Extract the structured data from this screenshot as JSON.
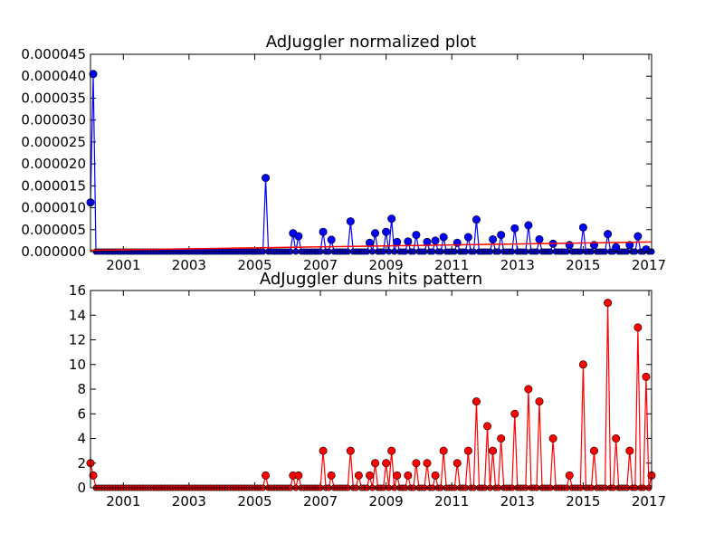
{
  "chart_data": [
    {
      "type": "line",
      "title": "AdJuggler normalized plot",
      "xlabel": "",
      "ylabel": "",
      "x_tick_labels": [
        "2001",
        "2003",
        "2005",
        "2007",
        "2009",
        "2011",
        "2013",
        "2015",
        "2017"
      ],
      "y_tick_labels": [
        "0.000000",
        "0.000005",
        "0.000010",
        "0.000015",
        "0.000020",
        "0.000025",
        "0.000030",
        "0.000035",
        "0.000040",
        "0.000045"
      ],
      "xlim": [
        "2000-01",
        "2017-02"
      ],
      "ylim": [
        0,
        4.5e-05
      ],
      "grid": false,
      "series": [
        {
          "color": "#0000ff",
          "marker": "circle",
          "x": [
            "2000-01",
            "2000-02",
            "2005-05",
            "2006-03",
            "2006-05",
            "2007-02",
            "2007-05",
            "2007-12",
            "2008-07",
            "2008-09",
            "2009-01",
            "2009-03",
            "2009-05",
            "2009-09",
            "2009-12",
            "2010-04",
            "2010-07",
            "2010-10",
            "2011-03",
            "2011-07",
            "2011-10",
            "2012-04",
            "2012-07",
            "2012-12",
            "2013-05",
            "2013-09",
            "2014-02",
            "2014-08",
            "2015-01",
            "2015-05",
            "2015-10",
            "2016-01",
            "2016-06",
            "2016-09",
            "2016-12"
          ],
          "values": [
            1.12e-05,
            4.05e-05,
            1.68e-05,
            4.2e-06,
            3.5e-06,
            4.5e-06,
            2.7e-06,
            6.9e-06,
            2e-06,
            4.2e-06,
            4.5e-06,
            7.5e-06,
            2.2e-06,
            2.3e-06,
            3.8e-06,
            2.2e-06,
            2.5e-06,
            3.3e-06,
            2e-06,
            3.3e-06,
            7.3e-06,
            2.8e-06,
            3.8e-06,
            5.3e-06,
            6e-06,
            2.8e-06,
            1.8e-06,
            1.5e-06,
            5.5e-06,
            1.5e-06,
            4e-06,
            1e-06,
            1.5e-06,
            3.5e-06,
            5e-07
          ]
        },
        {
          "color": "#ff0000",
          "marker": "none",
          "x": [
            "2000-01",
            "2017-02"
          ],
          "values": [
            3e-07,
            2.2e-06
          ]
        }
      ]
    },
    {
      "type": "line",
      "title": "AdJuggler duns hits pattern",
      "xlabel": "",
      "ylabel": "",
      "x_tick_labels": [
        "2001",
        "2003",
        "2005",
        "2007",
        "2009",
        "2011",
        "2013",
        "2015",
        "2017"
      ],
      "y_tick_labels": [
        "0",
        "2",
        "4",
        "6",
        "8",
        "10",
        "12",
        "14",
        "16"
      ],
      "xlim": [
        "2000-01",
        "2017-02"
      ],
      "ylim": [
        0,
        16
      ],
      "grid": false,
      "series": [
        {
          "color": "#ff0000",
          "marker": "circle",
          "x": [
            "2000-01",
            "2000-02",
            "2005-05",
            "2006-03",
            "2006-05",
            "2007-02",
            "2007-05",
            "2007-12",
            "2008-03",
            "2008-07",
            "2008-09",
            "2009-01",
            "2009-03",
            "2009-05",
            "2009-09",
            "2009-12",
            "2010-04",
            "2010-07",
            "2010-10",
            "2011-03",
            "2011-07",
            "2011-10",
            "2012-02",
            "2012-04",
            "2012-07",
            "2012-12",
            "2013-05",
            "2013-09",
            "2014-02",
            "2014-08",
            "2015-01",
            "2015-05",
            "2015-10",
            "2016-01",
            "2016-06",
            "2016-09",
            "2016-12",
            "2017-02"
          ],
          "values": [
            2,
            1,
            1,
            1,
            1,
            3,
            1,
            3,
            1,
            1,
            2,
            2,
            3,
            1,
            1,
            2,
            2,
            1,
            3,
            2,
            3,
            7,
            5,
            3,
            4,
            6,
            8,
            7,
            4,
            1,
            10,
            3,
            15,
            4,
            3,
            13,
            9,
            1
          ]
        }
      ]
    }
  ]
}
